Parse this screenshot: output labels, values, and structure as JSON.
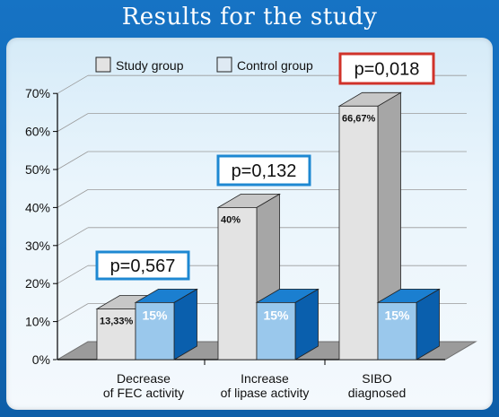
{
  "page": {
    "title": "Results for the study"
  },
  "colors": {
    "frame": "#0f66b3",
    "study_front": "#e3e3e3",
    "study_side": "#a6a6a6",
    "study_top": "#c7c7c7",
    "control_front": "#9ac8ec",
    "control_side": "#0a5fad",
    "control_top": "#1b7fd0",
    "pbox_blue": "#1e88d2",
    "pbox_red": "#d0322a"
  },
  "chart_data": {
    "type": "bar",
    "title": "Results for the study",
    "categories": [
      [
        "Decrease",
        "of FEC activity"
      ],
      [
        "Increase",
        "of lipase activity"
      ],
      [
        "SIBO",
        "diagnosed"
      ]
    ],
    "series": [
      {
        "name": "Study group",
        "values": [
          13.33,
          40,
          66.67
        ],
        "labels": [
          "13,33%",
          "40%",
          "66,67%"
        ]
      },
      {
        "name": "Control group",
        "values": [
          15,
          15,
          15
        ],
        "labels": [
          "15%",
          "15%",
          "15%"
        ]
      }
    ],
    "ylim": [
      0,
      70
    ],
    "yticks": [
      "0%",
      "10%",
      "20%",
      "30%",
      "40%",
      "50%",
      "60%",
      "70%"
    ],
    "grid": true,
    "legend_position": "top",
    "annotations": [
      {
        "text": "p=0,567",
        "category": 0,
        "border": "blue"
      },
      {
        "text": "p=0,132",
        "category": 1,
        "border": "blue"
      },
      {
        "text": "p=0,018",
        "category": 2,
        "border": "red"
      }
    ]
  }
}
